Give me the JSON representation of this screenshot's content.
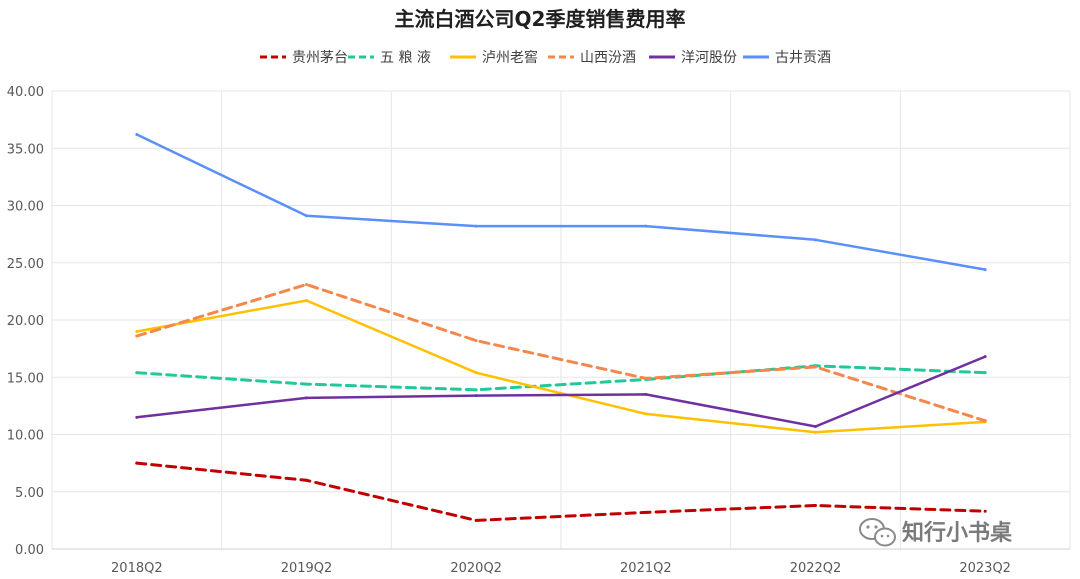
{
  "chart_data": {
    "type": "line",
    "title": "主流白酒公司Q2季度销售费用率",
    "categories": [
      "2018Q2",
      "2019Q2",
      "2020Q2",
      "2021Q2",
      "2022Q2",
      "2023Q2"
    ],
    "ylim": [
      0,
      40
    ],
    "yticks": [
      "0.00",
      "5.00",
      "10.00",
      "15.00",
      "20.00",
      "25.00",
      "30.00",
      "35.00",
      "40.00"
    ],
    "grid": true,
    "legend_position": "top",
    "series": [
      {
        "name": "贵州茅台",
        "color": "#c00000",
        "dash": true,
        "values": [
          7.5,
          6.0,
          2.5,
          3.2,
          3.8,
          3.3
        ]
      },
      {
        "name": "五 粮 液",
        "color": "#20c997",
        "dash": true,
        "values": [
          15.4,
          14.4,
          13.9,
          14.8,
          16.0,
          15.4
        ]
      },
      {
        "name": "泸州老窖",
        "color": "#ffc000",
        "dash": false,
        "values": [
          19.0,
          21.7,
          15.4,
          11.8,
          10.2,
          11.1
        ]
      },
      {
        "name": "山西汾酒",
        "color": "#f4874b",
        "dash": true,
        "values": [
          18.6,
          23.1,
          18.2,
          14.9,
          15.9,
          11.2
        ]
      },
      {
        "name": "洋河股份",
        "color": "#7030a0",
        "dash": false,
        "values": [
          11.5,
          13.2,
          13.4,
          13.5,
          10.7,
          16.8
        ]
      },
      {
        "name": "古井贡酒",
        "color": "#5b8ff9",
        "dash": false,
        "values": [
          36.2,
          29.1,
          28.2,
          28.2,
          27.0,
          24.4
        ]
      }
    ]
  },
  "watermark": {
    "text": "知行小书桌",
    "icon": "wechat-icon"
  }
}
